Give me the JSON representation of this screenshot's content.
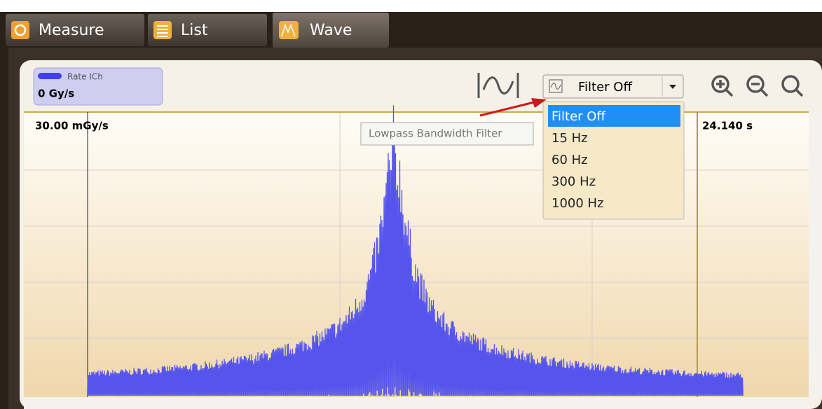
{
  "tabs": [
    {
      "label": "Measure"
    },
    {
      "label": "List"
    },
    {
      "label": "Wave"
    }
  ],
  "legend": {
    "name": "Rate ICh",
    "value": "0 Gy/s"
  },
  "filter": {
    "selected": "Filter Off",
    "options": [
      "Filter Off",
      "15 Hz",
      "60 Hz",
      "300 Hz",
      "1000 Hz"
    ],
    "tooltip": "Lowpass Bandwidth Filter"
  },
  "plot": {
    "y_label": "30.00 mGy/s",
    "time_label": "24.140 s"
  }
}
